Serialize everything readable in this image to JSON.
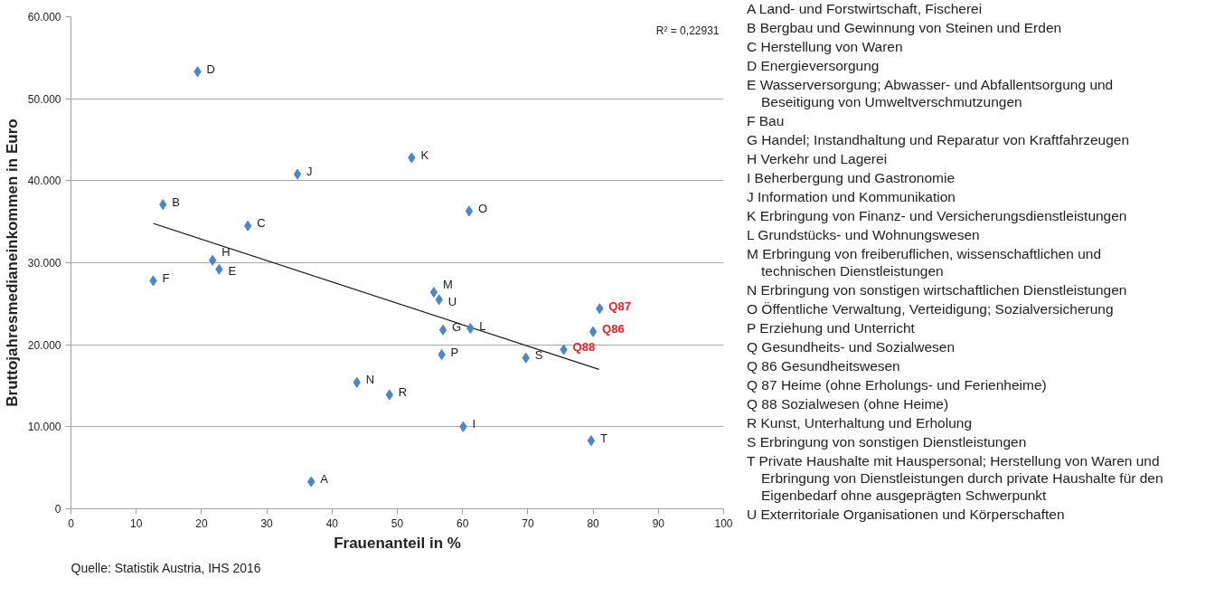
{
  "chart_data": {
    "type": "scatter",
    "xlabel": "Frauenanteil in %",
    "ylabel": "Bruttojahresmedianeinkommen in Euro",
    "xlim": [
      0,
      100
    ],
    "xticks": [
      0,
      10,
      20,
      30,
      40,
      50,
      60,
      70,
      80,
      90,
      100
    ],
    "ylim": [
      0,
      60000
    ],
    "yticks": [
      {
        "value": 0,
        "label": "0"
      },
      {
        "value": 10000,
        "label": "10.000"
      },
      {
        "value": 20000,
        "label": "20.000"
      },
      {
        "value": 30000,
        "label": "30.000"
      },
      {
        "value": 40000,
        "label": "40.000"
      },
      {
        "value": 50000,
        "label": "50.000"
      },
      {
        "value": 60000,
        "label": "60.000"
      }
    ],
    "grid": "y",
    "marker": "diamond",
    "series": [
      {
        "color": "#4a86c8",
        "x": [
          36.8,
          14.1,
          27.1,
          19.4,
          22.7,
          12.6,
          57.0,
          21.7,
          60.1,
          34.7,
          52.2,
          61.2,
          55.6,
          43.8,
          61.0,
          56.8,
          48.8,
          69.7,
          79.7,
          56.4
        ],
        "values": [
          3300,
          37100,
          34500,
          53300,
          29200,
          27800,
          21800,
          30300,
          10000,
          40800,
          42800,
          22000,
          26400,
          15400,
          36300,
          18800,
          13900,
          18400,
          8300,
          25500
        ],
        "value_labels": [
          "A",
          "B",
          "C",
          "D",
          "E",
          "F",
          "G",
          "H",
          "I",
          "J",
          "K",
          "L",
          "M",
          "N",
          "O",
          "P",
          "R",
          "S",
          "T",
          "U"
        ]
      },
      {
        "color": "#4a86c8",
        "x": [
          81.0,
          80.0,
          75.5
        ],
        "values": [
          24400,
          21600,
          19400
        ],
        "value_labels": [
          "Q87",
          "Q86",
          "Q88"
        ]
      },
      {
        "type": "line",
        "marker": "none",
        "color": "#1a1a1a",
        "x": [
          12.6,
          80.9
        ],
        "values": [
          34800,
          17000
        ]
      }
    ],
    "annotations": [
      "R² = 0,22931",
      "Quelle: Statistik Austria, IHS 2016",
      "A Land- und Forstwirtschaft, Fischerei",
      "B Bergbau und Gewinnung von Steinen und Erden",
      "C Herstellung von Waren",
      "D Energieversorgung",
      "E Wasserversorgung; Abwasser- und Abfallentsorgung und Beseitigung von Umweltverschmutzungen",
      "F Bau",
      "G Handel; Instandhaltung und Reparatur von Kraftfahrzeugen",
      "H Verkehr und Lagerei",
      "I Beherbergung und Gastronomie",
      "J Information und Kommunikation",
      "K Erbringung von Finanz- und Versicherungsdienstleistungen",
      "L Grundstücks- und Wohnungswesen",
      "M Erbringung von freiberuflichen, wissenschaftlichen und technischen Dienstleistungen",
      "N Erbringung von sonstigen wirtschaftlichen Dienstleistungen",
      "O Öffentliche Verwaltung, Verteidigung; Sozialversicherung",
      "P Erziehung und Unterricht",
      "Q Gesundheits- und Sozialwesen",
      "Q 86 Gesundheitswesen",
      "Q 87 Heime (ohne Erholungs- und Ferienheime)",
      "Q 88 Sozialwesen (ohne Heime)",
      "R Kunst, Unterhaltung und Erholung",
      "S Erbringung von sonstigen Dienstleistungen",
      "T Private Haushalte mit Hauspersonal; Herstellung von Waren und Erbringung von Dienstleistungen durch private Haushalte für den Eigenbedarf ohne ausgeprägten Schwerpunkt",
      "U Exterritoriale Organisationen und Körperschaften"
    ]
  }
}
